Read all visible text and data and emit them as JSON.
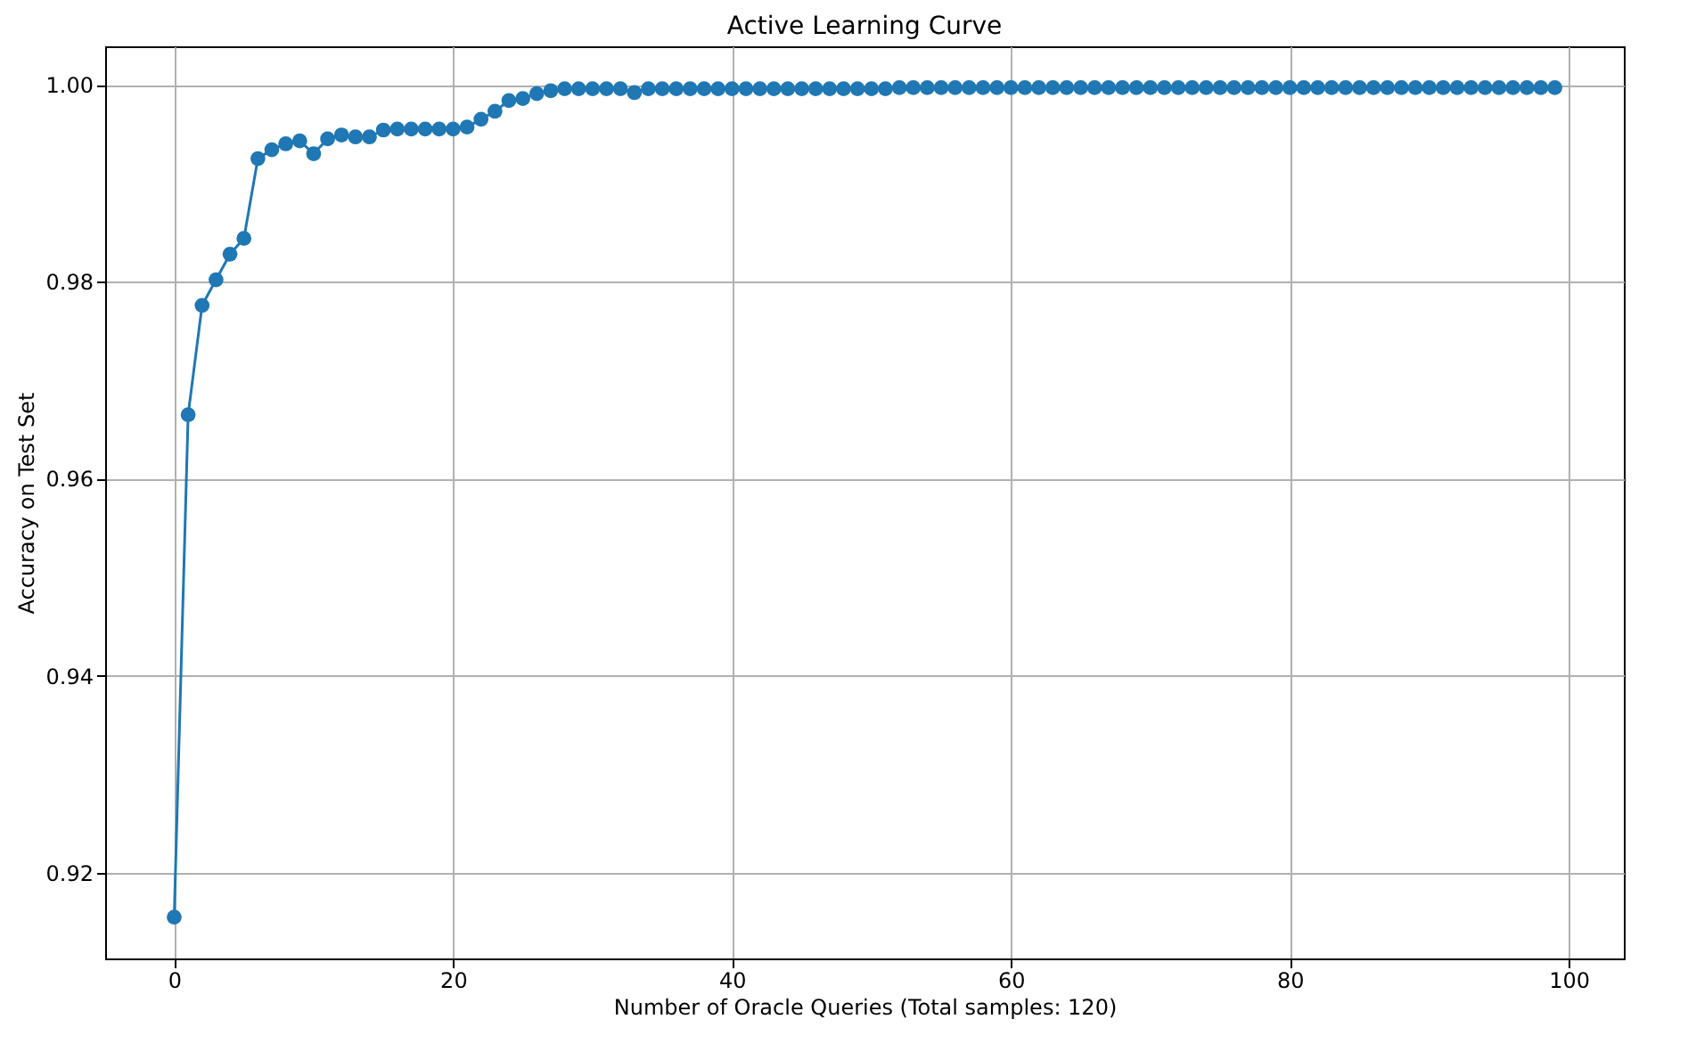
{
  "chart_data": {
    "type": "line",
    "title": "Active Learning Curve",
    "xlabel": "Number of Oracle Queries (Total samples: 120)",
    "ylabel": "Accuracy on Test Set",
    "x": [
      0,
      1,
      2,
      3,
      4,
      5,
      6,
      7,
      8,
      9,
      10,
      11,
      12,
      13,
      14,
      15,
      16,
      17,
      18,
      19,
      20,
      21,
      22,
      23,
      24,
      25,
      26,
      27,
      28,
      29,
      30,
      31,
      32,
      33,
      34,
      35,
      36,
      37,
      38,
      39,
      40,
      41,
      42,
      43,
      44,
      45,
      46,
      47,
      48,
      49,
      50,
      51,
      52,
      53,
      54,
      55,
      56,
      57,
      58,
      59,
      60,
      61,
      62,
      63,
      64,
      65,
      66,
      67,
      68,
      69,
      70,
      71,
      72,
      73,
      74,
      75,
      76,
      77,
      78,
      79,
      80,
      81,
      82,
      83,
      84,
      85,
      86,
      87,
      88,
      89,
      90,
      91,
      92,
      93,
      94,
      95,
      96,
      97,
      98,
      99
    ],
    "series": [
      {
        "color": "#1f77b4",
        "values": [
          0.9155,
          0.9665,
          0.9776,
          0.9802,
          0.9828,
          0.9844,
          0.9925,
          0.9934,
          0.994,
          0.9943,
          0.993,
          0.9945,
          0.9949,
          0.9947,
          0.9947,
          0.9954,
          0.9955,
          0.9955,
          0.9955,
          0.9955,
          0.9955,
          0.9957,
          0.9965,
          0.9973,
          0.9984,
          0.9986,
          0.9991,
          0.9994,
          0.9996,
          0.9996,
          0.9996,
          0.9996,
          0.9996,
          0.9992,
          0.9996,
          0.9996,
          0.9996,
          0.9996,
          0.9996,
          0.9996,
          0.9996,
          0.9996,
          0.9996,
          0.9996,
          0.9996,
          0.9996,
          0.9996,
          0.9996,
          0.9996,
          0.9996,
          0.9996,
          0.9996,
          0.9997,
          0.9997,
          0.9997,
          0.9997,
          0.9997,
          0.9997,
          0.9997,
          0.9997,
          0.9997,
          0.9997,
          0.9997,
          0.9997,
          0.9997,
          0.9997,
          0.9997,
          0.9997,
          0.9997,
          0.9997,
          0.9997,
          0.9997,
          0.9997,
          0.9997,
          0.9997,
          0.9997,
          0.9997,
          0.9997,
          0.9997,
          0.9997,
          0.9997,
          0.9997,
          0.9997,
          0.9997,
          0.9997,
          0.9997,
          0.9997,
          0.9997,
          0.9997,
          0.9997,
          0.9997,
          0.9997,
          0.9997,
          0.9997,
          0.9997,
          0.9997,
          0.9997,
          0.9997,
          0.9997,
          0.9997
        ]
      }
    ],
    "xlim": [
      -4.95,
      103.95
    ],
    "ylim": [
      0.9113,
      1.0039
    ],
    "xticks": [
      0,
      20,
      40,
      60,
      80,
      100
    ],
    "yticks": [
      0.92,
      0.94,
      0.96,
      0.98,
      {
        "value": 1,
        "label": "1.00"
      }
    ],
    "grid": true,
    "marker": "circle",
    "line_style": "solid"
  }
}
